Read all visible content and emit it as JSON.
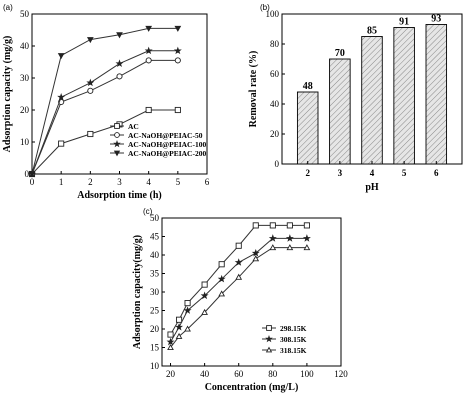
{
  "chart_data": [
    {
      "panel_label": "(a)",
      "type": "line",
      "xlabel": "Adsorption time (h)",
      "ylabel": "Adsorption capacity (mg/g)",
      "xlim": [
        0,
        6
      ],
      "ylim": [
        0,
        50
      ],
      "xticks": [
        "0",
        "1",
        "2",
        "3",
        "4",
        "5",
        "6"
      ],
      "yticks": [
        "0",
        "10",
        "20",
        "30",
        "40",
        "50"
      ],
      "legend_position": "bottom-right",
      "series": [
        {
          "name": "AC",
          "marker": "square",
          "x": [
            0,
            1,
            2,
            3,
            4,
            5
          ],
          "y": [
            0,
            9.5,
            12.5,
            15.5,
            20,
            20
          ]
        },
        {
          "name": "AC-NaOH@PEIAC-50",
          "marker": "circle",
          "x": [
            0,
            1,
            2,
            3,
            4,
            5
          ],
          "y": [
            0,
            22.5,
            26,
            30.5,
            35.5,
            35.5
          ]
        },
        {
          "name": "AC-NaOH@PEIAC-100",
          "marker": "star",
          "x": [
            0,
            1,
            2,
            3,
            4,
            5
          ],
          "y": [
            0,
            24,
            28.5,
            34.5,
            38.5,
            38.5
          ]
        },
        {
          "name": "AC-NaOH@PEIAC-200",
          "marker": "triangle-down",
          "x": [
            0,
            1,
            2,
            3,
            4,
            5
          ],
          "y": [
            0,
            37,
            42,
            43.5,
            45.5,
            45.5
          ]
        }
      ]
    },
    {
      "panel_label": "(b)",
      "type": "bar",
      "xlabel": "pH",
      "ylabel": "Removal rate (%)",
      "categories": [
        "2",
        "3",
        "4",
        "5",
        "6"
      ],
      "values": [
        48,
        70,
        85,
        91,
        93
      ],
      "data_labels": [
        "48",
        "70",
        "85",
        "91",
        "93"
      ],
      "ylim": [
        0,
        100
      ],
      "yticks": [
        "0",
        "20",
        "40",
        "60",
        "80",
        "100"
      ]
    },
    {
      "panel_label": "(c)",
      "type": "line",
      "xlabel": "Concentration (mg/L)",
      "ylabel": "Adsorption capacity(mg/g)",
      "xlim": [
        15,
        120
      ],
      "ylim": [
        10,
        50
      ],
      "xticks": [
        "20",
        "40",
        "60",
        "80",
        "100",
        "120"
      ],
      "yticks": [
        "10",
        "15",
        "20",
        "25",
        "30",
        "35",
        "40",
        "45",
        "50"
      ],
      "legend_position": "bottom-right",
      "series": [
        {
          "name": "298.15K",
          "marker": "square",
          "x": [
            20,
            25,
            30,
            40,
            50,
            60,
            70,
            80,
            90,
            100
          ],
          "y": [
            18.5,
            22.5,
            27,
            32,
            37.5,
            42.5,
            48,
            48,
            48,
            48
          ]
        },
        {
          "name": "308.15K",
          "marker": "star",
          "x": [
            20,
            25,
            30,
            40,
            50,
            60,
            70,
            80,
            90,
            100
          ],
          "y": [
            16.5,
            20.5,
            25,
            29,
            33.5,
            38,
            40.5,
            44.5,
            44.5,
            44.5
          ]
        },
        {
          "name": "318.15K",
          "marker": "triangle-up",
          "x": [
            20,
            25,
            30,
            40,
            50,
            60,
            70,
            80,
            90,
            100
          ],
          "y": [
            15,
            18,
            20,
            24.5,
            29.5,
            34,
            39,
            42,
            42,
            42
          ]
        }
      ]
    }
  ]
}
